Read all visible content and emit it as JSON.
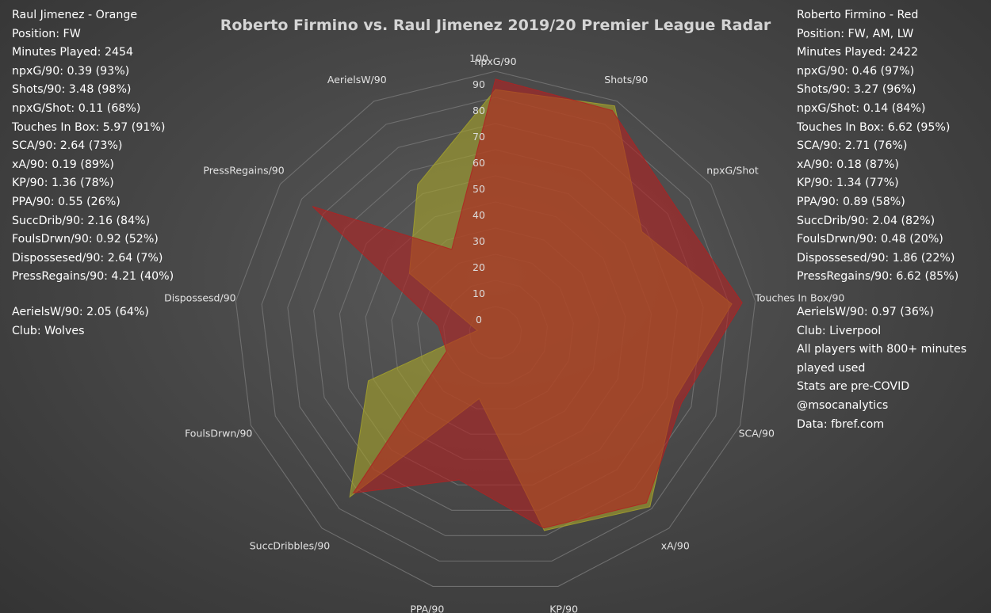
{
  "chart_data": {
    "type": "radar",
    "title": "Roberto Firmino vs. Raul Jimenez 2019/20 Premier League Radar",
    "axes": [
      "npxG/90",
      "Shots/90",
      "npxG/Shot",
      "Touches In Box/90",
      "SCA/90",
      "xA/90",
      "KP/90",
      "PPA/90",
      "SuccDribbles/90",
      "FoulsDrwn/90",
      "Dispossesd/90",
      "PressRegains/90",
      "AerielsW/90"
    ],
    "rlim": [
      0,
      100
    ],
    "ticks": [
      0,
      10,
      20,
      30,
      40,
      50,
      60,
      70,
      80,
      90,
      100
    ],
    "grid": true,
    "series": [
      {
        "name": "Raul Jimenez",
        "color": "#a4a22c",
        "values": [
          93,
          98,
          68,
          91,
          73,
          89,
          78,
          26,
          84,
          52,
          7,
          40,
          64
        ]
      },
      {
        "name": "Roberto Firmino",
        "color": "#b02222",
        "values": [
          97,
          96,
          84,
          95,
          76,
          87,
          77,
          58,
          82,
          20,
          22,
          85,
          36
        ]
      }
    ]
  },
  "left_panel": {
    "lines": [
      "Raul Jimenez - Orange",
      "Position: FW",
      "Minutes Played: 2454",
      "npxG/90: 0.39 (93%)",
      "Shots/90: 3.48 (98%)",
      "npxG/Shot: 0.11 (68%)",
      "Touches In Box: 5.97 (91%)",
      "SCA/90: 2.64 (73%)",
      "xA/90: 0.19 (89%)",
      "KP/90: 1.36 (78%)",
      "PPA/90: 0.55 (26%)",
      "SuccDrib/90: 2.16 (84%)",
      "FoulsDrwn/90: 0.92 (52%)",
      "Dispossesed/90: 2.64 (7%)",
      "PressRegains/90: 4.21 (40%)"
    ],
    "extra": [
      "AerielsW/90: 2.05 (64%)",
      "Club: Wolves"
    ]
  },
  "right_panel": {
    "lines": [
      "Roberto Firmino - Red",
      "Position: FW, AM, LW",
      "Minutes Played: 2422",
      "npxG/90: 0.46 (97%)",
      "Shots/90: 3.27 (96%)",
      "npxG/Shot: 0.14 (84%)",
      "Touches In Box: 6.62 (95%)",
      "SCA/90: 2.71 (76%)",
      "xA/90: 0.18 (87%)",
      "KP/90: 1.34 (77%)",
      "PPA/90: 0.89 (58%)",
      "SuccDrib/90: 2.04 (82%)",
      "FoulsDrwn/90: 0.48 (20%)",
      "Dispossesed/90: 1.86 (22%)",
      "PressRegains/90: 6.62 (85%)"
    ],
    "extra": [
      "AerielsW/90: 0.97 (36%)",
      "Club: Liverpool",
      "All players with 800+ minutes",
      "played used",
      "Stats are pre-COVID",
      "@msocanalytics",
      "Data: fbref.com"
    ]
  }
}
